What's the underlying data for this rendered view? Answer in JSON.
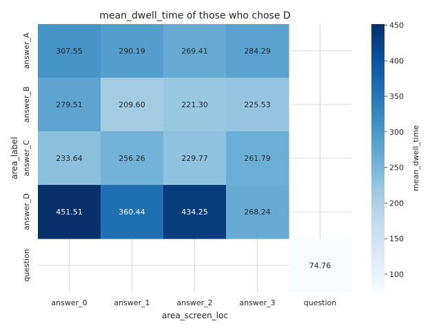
{
  "chart_data": {
    "type": "heatmap",
    "title": "mean_dwell_time of those who chose D",
    "xlabel": "area_screen_loc",
    "ylabel": "area_label",
    "x_categories": [
      "answer_0",
      "answer_1",
      "answer_2",
      "answer_3",
      "question"
    ],
    "y_categories": [
      "answer_A",
      "answer_B",
      "answer_C",
      "answer_D",
      "question"
    ],
    "values": [
      [
        307.55,
        290.19,
        269.41,
        284.29,
        null
      ],
      [
        279.51,
        209.6,
        221.3,
        225.53,
        null
      ],
      [
        233.64,
        256.26,
        229.77,
        261.79,
        null
      ],
      [
        451.51,
        360.44,
        434.25,
        268.24,
        null
      ],
      [
        null,
        null,
        null,
        null,
        74.76
      ]
    ],
    "value_labels": [
      [
        "307.55",
        "290.19",
        "269.41",
        "284.29",
        ""
      ],
      [
        "279.51",
        "209.60",
        "221.30",
        "225.53",
        ""
      ],
      [
        "233.64",
        "256.26",
        "229.77",
        "261.79",
        ""
      ],
      [
        "451.51",
        "360.44",
        "434.25",
        "268.24",
        ""
      ],
      [
        "",
        "",
        "",
        "",
        "74.76"
      ]
    ],
    "colorbar": {
      "label": "mean_dwell_time",
      "ticks": [
        100,
        150,
        200,
        250,
        300,
        350,
        400,
        450
      ],
      "range": [
        74.76,
        451.51
      ],
      "colormap": "Blues"
    },
    "grid": true
  }
}
